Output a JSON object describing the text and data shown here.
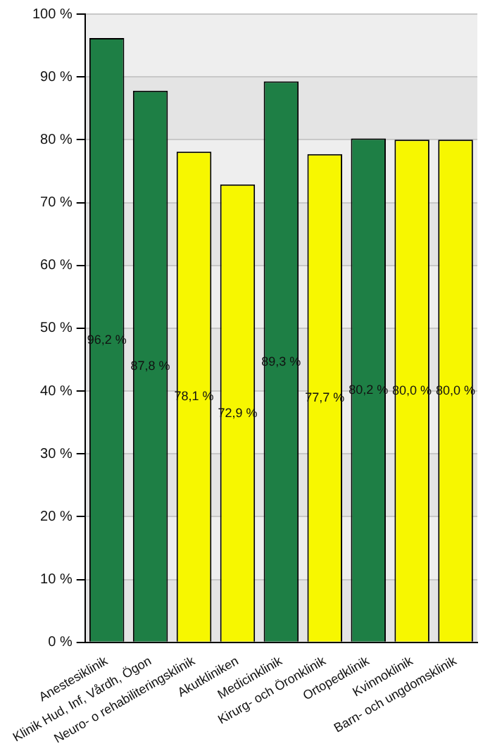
{
  "chart_data": {
    "type": "bar",
    "categories": [
      "Anestesiklinik",
      "Klinik Hud, Inf, Vårdh, Ögon",
      "Neuro- o rehabiliteringsklinik",
      "Akutkliniken",
      "Medicinklinik",
      "Kirurg- och Öronklinik",
      "Ortopedklinik",
      "Kvinnoklinik",
      "Barn- och ungdomsklinik"
    ],
    "values": [
      96.2,
      87.8,
      78.1,
      72.9,
      89.3,
      77.7,
      80.2,
      80.0,
      80.0
    ],
    "colors": [
      "#1e7f45",
      "#1e7f45",
      "#f7f700",
      "#f7f700",
      "#1e7f45",
      "#f7f700",
      "#1e7f45",
      "#f7f700",
      "#f7f700"
    ],
    "value_labels": [
      "96,2 %",
      "87,8 %",
      "78,1 %",
      "72,9 %",
      "89,3 %",
      "77,7 %",
      "80,2 %",
      "80,0 %",
      "80,0 %"
    ],
    "ylim": [
      0,
      100
    ],
    "yticks": [
      {
        "value": 0,
        "label": "0 %"
      },
      {
        "value": 10,
        "label": "10 %"
      },
      {
        "value": 20,
        "label": "20 %"
      },
      {
        "value": 30,
        "label": "30 %"
      },
      {
        "value": 40,
        "label": "40 %"
      },
      {
        "value": 50,
        "label": "50 %"
      },
      {
        "value": 60,
        "label": "60 %"
      },
      {
        "value": 70,
        "label": "70 %"
      },
      {
        "value": 80,
        "label": "80 %"
      },
      {
        "value": 90,
        "label": "90 %"
      },
      {
        "value": 100,
        "label": "100 %"
      }
    ],
    "grid": "y"
  }
}
